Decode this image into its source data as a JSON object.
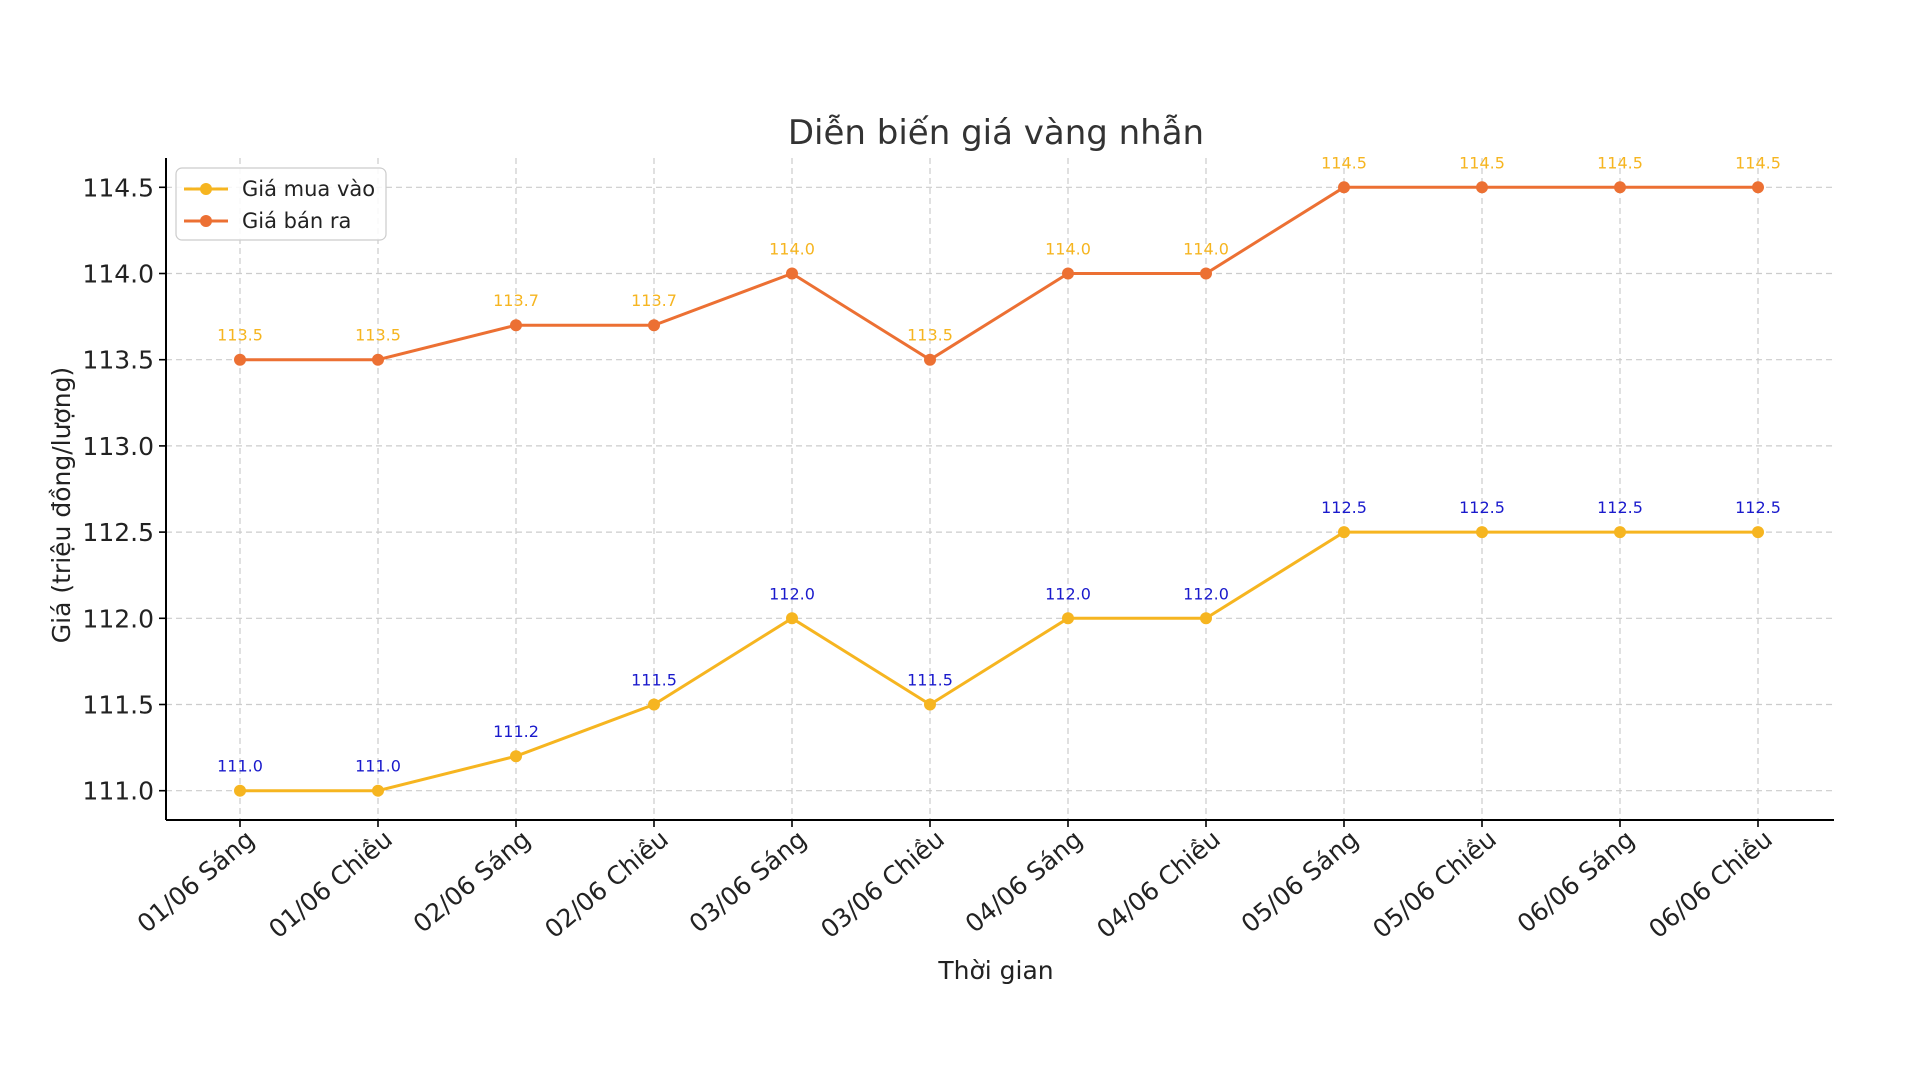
{
  "chart_data": {
    "type": "line",
    "title": "Diễn biến giá vàng nhẫn",
    "xlabel": "Thời gian",
    "ylabel": "Giá (triệu đồng/lượng)",
    "categories": [
      "01/06 Sáng",
      "01/06 Chiều",
      "02/06 Sáng",
      "02/06 Chiều",
      "03/06 Sáng",
      "03/06 Chiều",
      "04/06 Sáng",
      "04/06 Chiều",
      "05/06 Sáng",
      "05/06 Chiều",
      "06/06 Sáng",
      "06/06 Chiều"
    ],
    "ylim": [
      110.83,
      114.67
    ],
    "yticks": [
      "111.0",
      "111.5",
      "112.0",
      "112.5",
      "113.0",
      "113.5",
      "114.0",
      "114.5"
    ],
    "grid": true,
    "legend_position": "top-left",
    "series": [
      {
        "name": "Giá mua vào",
        "color": "#f6b520",
        "label_color": "#1a1acc",
        "values": [
          111.0,
          111.0,
          111.2,
          111.5,
          112.0,
          111.5,
          112.0,
          112.0,
          112.5,
          112.5,
          112.5,
          112.5
        ],
        "labels": [
          "111.0",
          "111.0",
          "111.2",
          "111.5",
          "112.0",
          "111.5",
          "112.0",
          "112.0",
          "112.5",
          "112.5",
          "112.5",
          "112.5"
        ]
      },
      {
        "name": "Giá bán ra",
        "color": "#ec7033",
        "label_color": "#f6b520",
        "values": [
          113.5,
          113.5,
          113.7,
          113.7,
          114.0,
          113.5,
          114.0,
          114.0,
          114.5,
          114.5,
          114.5,
          114.5
        ],
        "labels": [
          "113.5",
          "113.5",
          "113.7",
          "113.7",
          "114.0",
          "113.5",
          "114.0",
          "114.0",
          "114.5",
          "114.5",
          "114.5",
          "114.5"
        ]
      }
    ]
  }
}
